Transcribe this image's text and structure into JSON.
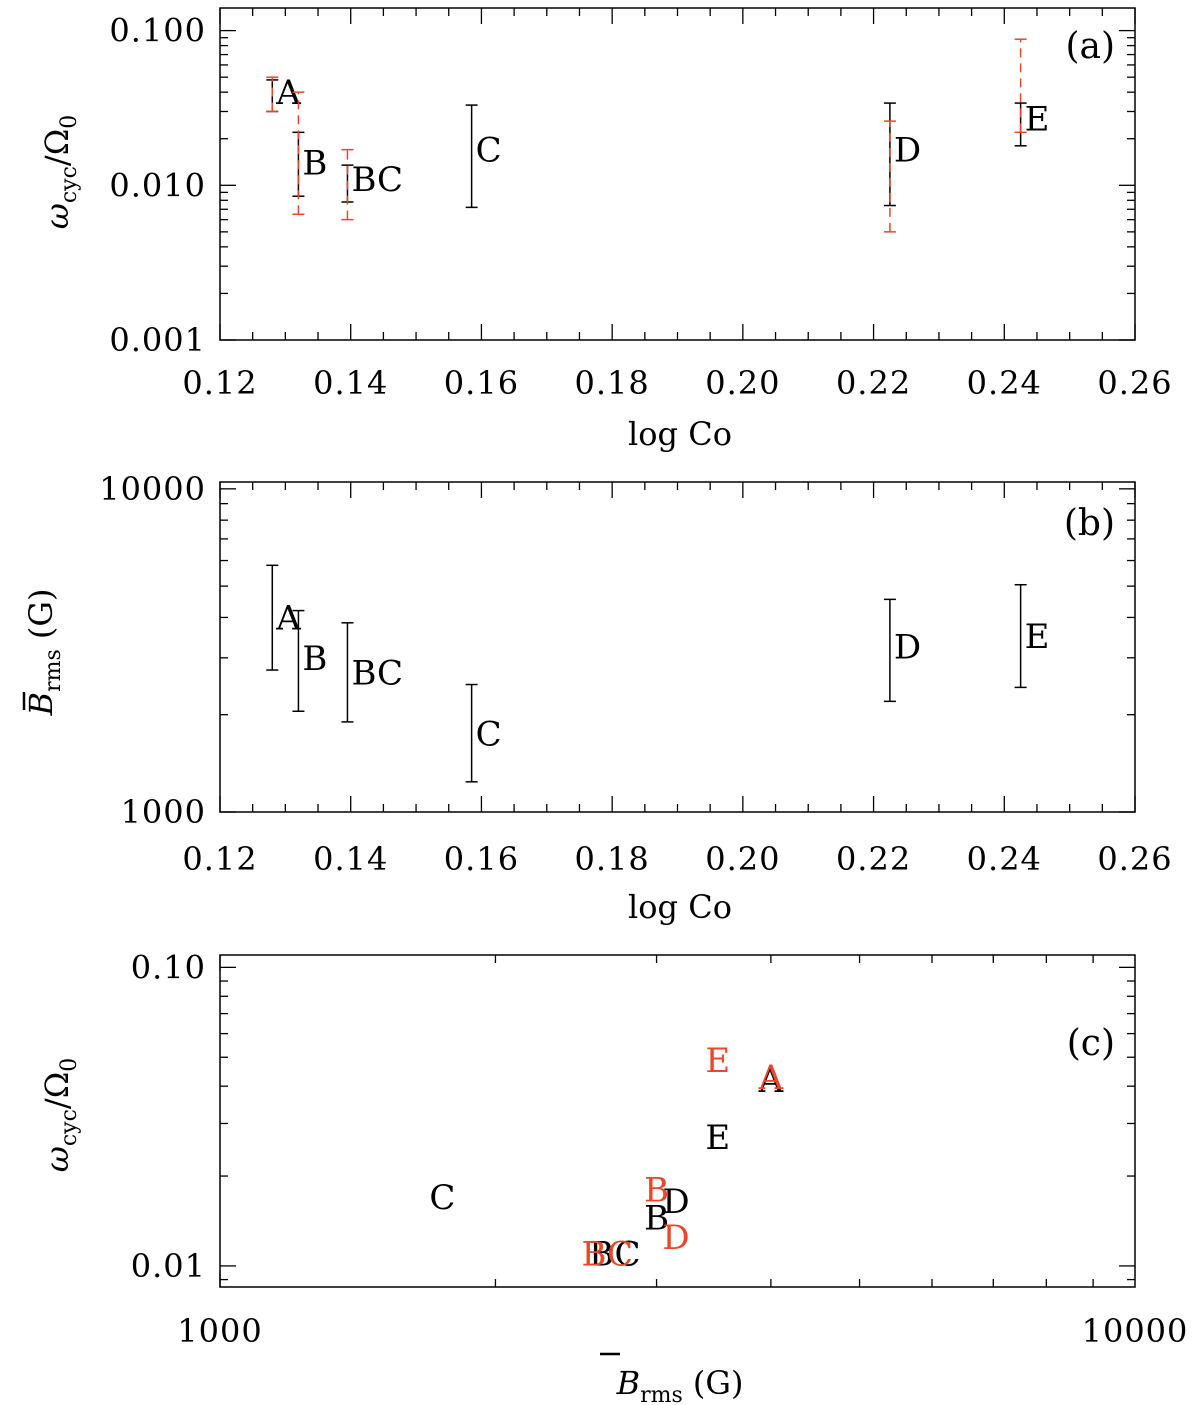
{
  "colors": {
    "axis": "#000000",
    "primary": "#000000",
    "secondary": "#e8472a"
  },
  "chart_data": [
    {
      "type": "scatter",
      "panel_label": "(a)",
      "xlabel": "log Co",
      "ylabel": "ω_cyc/Ω_0",
      "xlim": [
        0.12,
        0.26
      ],
      "ylim": [
        0.001,
        0.14
      ],
      "yscale": "log",
      "xticks": [
        "0.12",
        "0.14",
        "0.16",
        "0.18",
        "0.20",
        "0.22",
        "0.24",
        "0.26"
      ],
      "yticks": [
        "0.001",
        "0.010",
        "0.100"
      ],
      "series": [
        {
          "style": "solid",
          "color": "#000000",
          "points": [
            {
              "label": "A",
              "x": 0.128,
              "y": 0.04,
              "ylow": 0.03,
              "yhigh": 0.048
            },
            {
              "label": "B",
              "x": 0.132,
              "y": 0.014,
              "ylow": 0.0085,
              "yhigh": 0.022
            },
            {
              "label": "BC",
              "x": 0.1395,
              "y": 0.011,
              "ylow": 0.0078,
              "yhigh": 0.0135
            },
            {
              "label": "C",
              "x": 0.1585,
              "y": 0.017,
              "ylow": 0.0072,
              "yhigh": 0.033
            },
            {
              "label": "D",
              "x": 0.2225,
              "y": 0.017,
              "ylow": 0.0074,
              "yhigh": 0.034
            },
            {
              "label": "E",
              "x": 0.2425,
              "y": 0.027,
              "ylow": 0.018,
              "yhigh": 0.034
            }
          ]
        },
        {
          "style": "dashed",
          "color": "#e8472a",
          "points": [
            {
              "label": "A",
              "x": 0.128,
              "y": 0.041,
              "ylow": 0.03,
              "yhigh": 0.05
            },
            {
              "label": "B",
              "x": 0.132,
              "y": 0.015,
              "ylow": 0.0065,
              "yhigh": 0.04
            },
            {
              "label": "BC",
              "x": 0.1395,
              "y": 0.01,
              "ylow": 0.006,
              "yhigh": 0.017
            },
            {
              "label": "D",
              "x": 0.2225,
              "y": 0.012,
              "ylow": 0.005,
              "yhigh": 0.026
            },
            {
              "label": "E",
              "x": 0.2425,
              "y": 0.045,
              "ylow": 0.022,
              "yhigh": 0.088
            }
          ]
        }
      ]
    },
    {
      "type": "scatter",
      "panel_label": "(b)",
      "xlabel": "log Co",
      "ylabel": "B̄_rms (G)",
      "xlim": [
        0.12,
        0.26
      ],
      "ylim": [
        1000,
        10500
      ],
      "yscale": "log",
      "xticks": [
        "0.12",
        "0.14",
        "0.16",
        "0.18",
        "0.20",
        "0.22",
        "0.24",
        "0.26"
      ],
      "yticks": [
        "1000",
        "10000"
      ],
      "series": [
        {
          "style": "solid",
          "color": "#000000",
          "points": [
            {
              "label": "A",
              "x": 0.128,
              "y": 4000,
              "ylow": 2750,
              "yhigh": 5800
            },
            {
              "label": "B",
              "x": 0.132,
              "y": 3000,
              "ylow": 2050,
              "yhigh": 4200
            },
            {
              "label": "BC",
              "x": 0.1395,
              "y": 2700,
              "ylow": 1900,
              "yhigh": 3850
            },
            {
              "label": "C",
              "x": 0.1585,
              "y": 1750,
              "ylow": 1240,
              "yhigh": 2480
            },
            {
              "label": "D",
              "x": 0.2225,
              "y": 3250,
              "ylow": 2200,
              "yhigh": 4550
            },
            {
              "label": "E",
              "x": 0.2425,
              "y": 3500,
              "ylow": 2430,
              "yhigh": 5050
            }
          ]
        }
      ]
    },
    {
      "type": "scatter",
      "panel_label": "(c)",
      "xlabel": "B̄_rms (G)",
      "ylabel": "ω_cyc/Ω_0",
      "xlim": [
        1000,
        10000
      ],
      "ylim": [
        0.0085,
        0.11
      ],
      "xscale": "log",
      "yscale": "log",
      "xticks": [
        "1000",
        "10000"
      ],
      "yticks": [
        "0.01",
        "0.10"
      ],
      "series": [
        {
          "color": "#000000",
          "points": [
            {
              "label": "C",
              "x": 1750,
              "y": 0.017
            },
            {
              "label": "BC",
              "x": 2700,
              "y": 0.011
            },
            {
              "label": "B",
              "x": 3000,
              "y": 0.0145
            },
            {
              "label": "D",
              "x": 3150,
              "y": 0.0165
            },
            {
              "label": "E",
              "x": 3500,
              "y": 0.027
            },
            {
              "label": "A",
              "x": 4000,
              "y": 0.042
            }
          ]
        },
        {
          "color": "#e8472a",
          "points": [
            {
              "label": "BC",
              "x": 2650,
              "y": 0.011
            },
            {
              "label": "B",
              "x": 3000,
              "y": 0.018
            },
            {
              "label": "D",
              "x": 3150,
              "y": 0.0125
            },
            {
              "label": "E",
              "x": 3500,
              "y": 0.049
            },
            {
              "label": "A",
              "x": 4000,
              "y": 0.043
            }
          ]
        }
      ]
    }
  ]
}
